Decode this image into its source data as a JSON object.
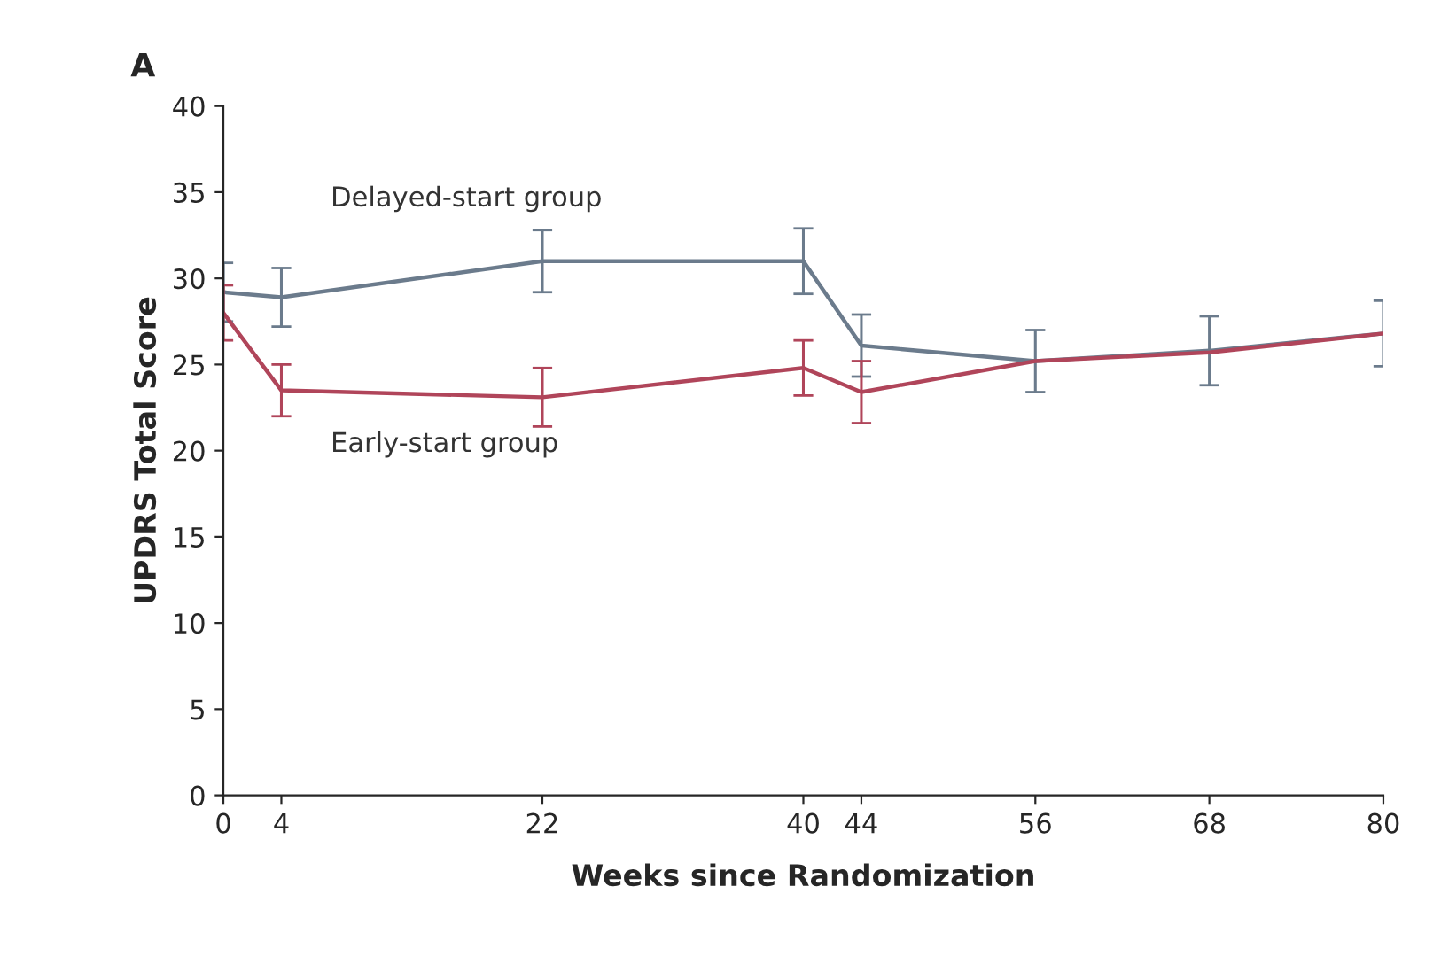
{
  "chart_data": {
    "type": "line",
    "title": "A",
    "xlabel": "Weeks since Randomization",
    "ylabel": "UPDRS Total Score",
    "x": [
      0,
      4,
      22,
      40,
      44,
      56,
      68,
      80
    ],
    "series": [
      {
        "name": "Delayed-start group",
        "color": "#6b7b8c",
        "values": [
          29.2,
          28.9,
          31.0,
          31.0,
          26.1,
          25.2,
          25.8,
          26.8
        ],
        "errors": [
          1.7,
          1.7,
          1.8,
          1.9,
          1.8,
          1.8,
          2.0,
          1.9
        ]
      },
      {
        "name": "Early-start group",
        "color": "#b0455a",
        "values": [
          28.0,
          23.5,
          23.1,
          24.8,
          23.4,
          25.2,
          25.7,
          26.8
        ],
        "errors": [
          1.6,
          1.5,
          1.7,
          1.6,
          1.8,
          null,
          null,
          null
        ]
      }
    ],
    "xlim": [
      0,
      80
    ],
    "xticks": [
      0,
      4,
      22,
      40,
      44,
      56,
      68,
      80
    ],
    "ylim": [
      0,
      40
    ],
    "yticks": [
      0,
      5,
      10,
      15,
      20,
      25,
      30,
      35,
      40
    ],
    "grid": false,
    "legend": false,
    "marker": "none",
    "line_style": "solid"
  }
}
